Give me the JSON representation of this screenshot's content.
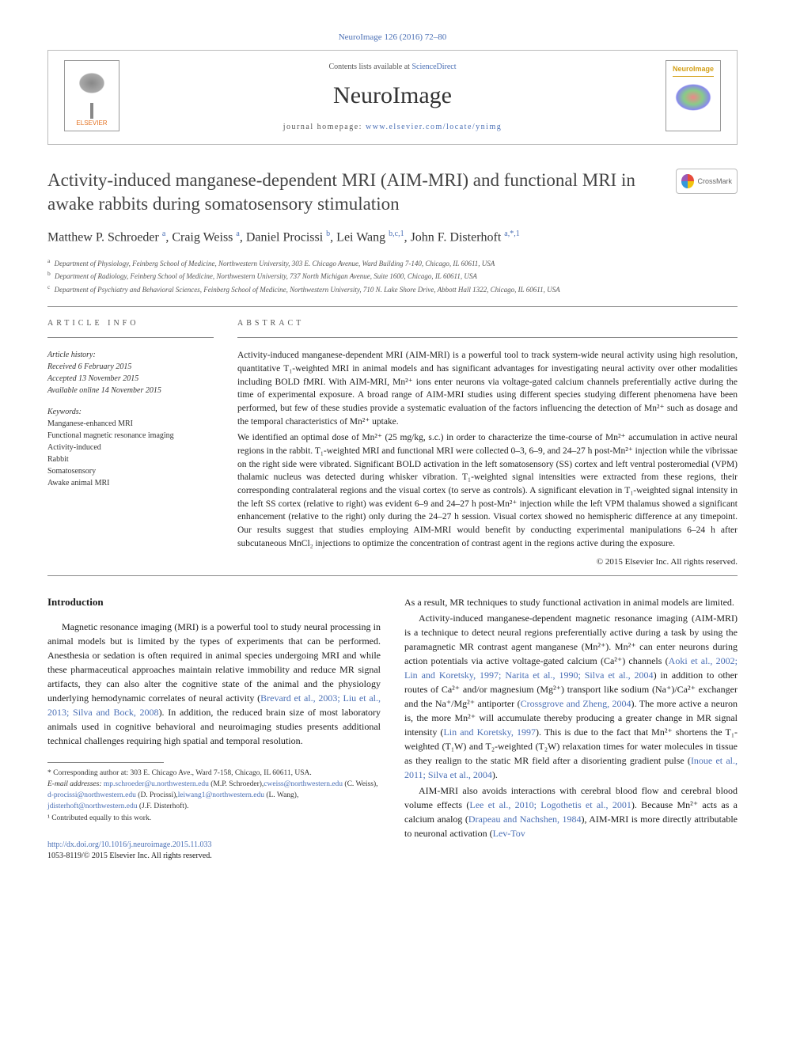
{
  "journal_ref": "NeuroImage 126 (2016) 72–80",
  "header": {
    "contents_prefix": "Contents lists available at ",
    "contents_link": "ScienceDirect",
    "journal_name": "NeuroImage",
    "homepage_prefix": "journal homepage: ",
    "homepage_url": "www.elsevier.com/locate/ynimg",
    "publisher_name": "ELSEVIER",
    "cover_title": "NeuroImage"
  },
  "crossmark_label": "CrossMark",
  "title": "Activity-induced manganese-dependent MRI (AIM-MRI) and functional MRI in awake rabbits during somatosensory stimulation",
  "authors_html": "Matthew P. Schroeder <sup>a</sup>, Craig Weiss <sup>a</sup>, Daniel Procissi <sup>b</sup>, Lei Wang <sup>b,c,1</sup>, John F. Disterhoft <sup>a,*,1</sup>",
  "affiliations": [
    {
      "sup": "a",
      "text": "Department of Physiology, Feinberg School of Medicine, Northwestern University, 303 E. Chicago Avenue, Ward Building 7-140, Chicago, IL 60611, USA"
    },
    {
      "sup": "b",
      "text": "Department of Radiology, Feinberg School of Medicine, Northwestern University, 737 North Michigan Avenue, Suite 1600, Chicago, IL 60611, USA"
    },
    {
      "sup": "c",
      "text": "Department of Psychiatry and Behavioral Sciences, Feinberg School of Medicine, Northwestern University, 710 N. Lake Shore Drive, Abbott Hall 1322, Chicago, IL 60611, USA"
    }
  ],
  "article_info": {
    "heading": "article info",
    "history_label": "Article history:",
    "history": [
      "Received 6 February 2015",
      "Accepted 13 November 2015",
      "Available online 14 November 2015"
    ],
    "keywords_label": "Keywords:",
    "keywords": [
      "Manganese-enhanced MRI",
      "Functional magnetic resonance imaging",
      "Activity-induced",
      "Rabbit",
      "Somatosensory",
      "Awake animal MRI"
    ]
  },
  "abstract": {
    "heading": "abstract",
    "p1": "Activity-induced manganese-dependent MRI (AIM-MRI) is a powerful tool to track system-wide neural activity using high resolution, quantitative T₁-weighted MRI in animal models and has significant advantages for investigating neural activity over other modalities including BOLD fMRI. With AIM-MRI, Mn²⁺ ions enter neurons via voltage-gated calcium channels preferentially active during the time of experimental exposure. A broad range of AIM-MRI studies using different species studying different phenomena have been performed, but few of these studies provide a systematic evaluation of the factors influencing the detection of Mn²⁺ such as dosage and the temporal characteristics of Mn²⁺ uptake.",
    "p2": "We identified an optimal dose of Mn²⁺ (25 mg/kg, s.c.) in order to characterize the time-course of Mn²⁺ accumulation in active neural regions in the rabbit. T₁-weighted MRI and functional MRI were collected 0–3, 6–9, and 24–27 h post-Mn²⁺ injection while the vibrissae on the right side were vibrated. Significant BOLD activation in the left somatosensory (SS) cortex and left ventral posteromedial (VPM) thalamic nucleus was detected during whisker vibration. T₁-weighted signal intensities were extracted from these regions, their corresponding contralateral regions and the visual cortex (to serve as controls). A significant elevation in T₁-weighted signal intensity in the left SS cortex (relative to right) was evident 6–9 and 24–27 h post-Mn²⁺ injection while the left VPM thalamus showed a significant enhancement (relative to the right) only during the 24–27 h session. Visual cortex showed no hemispheric difference at any timepoint. Our results suggest that studies employing AIM-MRI would benefit by conducting experimental manipulations 6–24 h after subcutaneous MnCl₂ injections to optimize the concentration of contrast agent in the regions active during the exposure.",
    "copyright": "© 2015 Elsevier Inc. All rights reserved."
  },
  "intro": {
    "heading": "Introduction",
    "left_paras": [
      "Magnetic resonance imaging (MRI) is a powerful tool to study neural processing in animal models but is limited by the types of experiments that can be performed. Anesthesia or sedation is often required in animal species undergoing MRI and while these pharmaceutical approaches maintain relative immobility and reduce MR signal artifacts, they can also alter the cognitive state of the animal and the physiology underlying hemodynamic correlates of neural activity ({LINK1}). In addition, the reduced brain size of most laboratory animals used in cognitive behavioral and neuroimaging studies presents additional technical challenges requiring high spatial and temporal resolution."
    ],
    "left_link1": "Brevard et al., 2003; Liu et al., 2013; Silva and Bock, 2008",
    "right_paras": [
      "As a result, MR techniques to study functional activation in animal models are limited.",
      "Activity-induced manganese-dependent magnetic resonance imaging (AIM-MRI) is a technique to detect neural regions preferentially active during a task by using the paramagnetic MR contrast agent manganese (Mn²⁺). Mn²⁺ can enter neurons during action potentials via active voltage-gated calcium (Ca²⁺) channels ({LINK2}) in addition to other routes of Ca²⁺ and/or magnesium (Mg²⁺) transport like sodium (Na⁺)/Ca²⁺ exchanger and the Na⁺/Mg²⁺ antiporter ({LINK3}). The more active a neuron is, the more Mn²⁺ will accumulate thereby producing a greater change in MR signal intensity ({LINK4}). This is due to the fact that Mn²⁺ shortens the T₁-weighted (T₁W) and T₂-weighted (T₂W) relaxation times for water molecules in tissue as they realign to the static MR field after a disorienting gradient pulse ({LINK5}).",
      "AIM-MRI also avoids interactions with cerebral blood flow and cerebral blood volume effects ({LINK6}). Because Mn²⁺ acts as a calcium analog ({LINK7}), AIM-MRI is more directly attributable to neuronal activation ({LINK8}"
    ],
    "right_link2": "Aoki et al., 2002; Lin and Koretsky, 1997; Narita et al., 1990; Silva et al., 2004",
    "right_link3": "Crossgrove and Zheng, 2004",
    "right_link4": "Lin and Koretsky, 1997",
    "right_link5": "Inoue et al., 2011; Silva et al., 2004",
    "right_link6": "Lee et al., 2010; Logothetis et al., 2001",
    "right_link7": "Drapeau and Nachshen, 1984",
    "right_link8": "Lev-Tov"
  },
  "footnotes": {
    "corr": "* Corresponding author at: 303 E. Chicago Ave., Ward 7-158, Chicago, IL 60611, USA.",
    "email_label": "E-mail addresses: ",
    "emails": [
      {
        "addr": "mp.schroeder@u.northwestern.edu",
        "who": " (M.P. Schroeder),"
      },
      {
        "addr": "cweiss@northwestern.edu",
        "who": " (C. Weiss), "
      },
      {
        "addr": "d-procissi@northwestern.edu",
        "who": " (D. Procissi),"
      },
      {
        "addr": "leiwang1@northwestern.edu",
        "who": " (L. Wang), "
      },
      {
        "addr": "jdisterhoft@northwestern.edu",
        "who": " (J.F. Disterhoft)."
      }
    ],
    "contrib": "¹ Contributed equally to this work."
  },
  "footer": {
    "doi": "http://dx.doi.org/10.1016/j.neuroimage.2015.11.033",
    "issn_line": "1053-8119/© 2015 Elsevier Inc. All rights reserved."
  },
  "colors": {
    "link": "#4a6fb5",
    "text": "#1a1a1a",
    "rule": "#888",
    "elsevier_orange": "#e37222"
  }
}
